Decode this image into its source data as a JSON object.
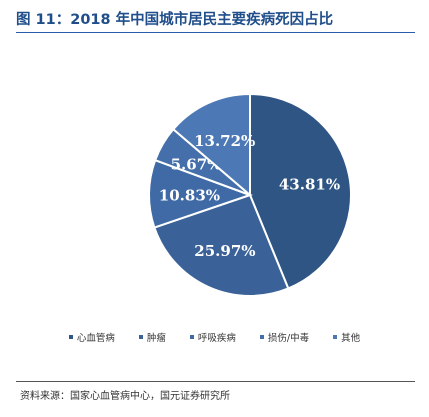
{
  "title": "图 11：2018 年中国城市居民主要疾病死因占比",
  "source": "资料来源：国家心血管病中心，国元证券研究所",
  "chart_data": {
    "type": "pie",
    "categories": [
      "心血管病",
      "肿瘤",
      "呼吸疾病",
      "损伤/中毒",
      "其他"
    ],
    "values": [
      43.81,
      25.97,
      10.83,
      5.67,
      13.72
    ],
    "labels": [
      "43.81%",
      "25.97%",
      "10.83%",
      "5.67%",
      "13.72%"
    ],
    "colors": [
      "#2f5584",
      "#3a6299",
      "#3f6aa5",
      "#446faa",
      "#4c79b5"
    ],
    "legend_position": "bottom",
    "start_angle_deg": 0,
    "direction": "clockwise"
  }
}
